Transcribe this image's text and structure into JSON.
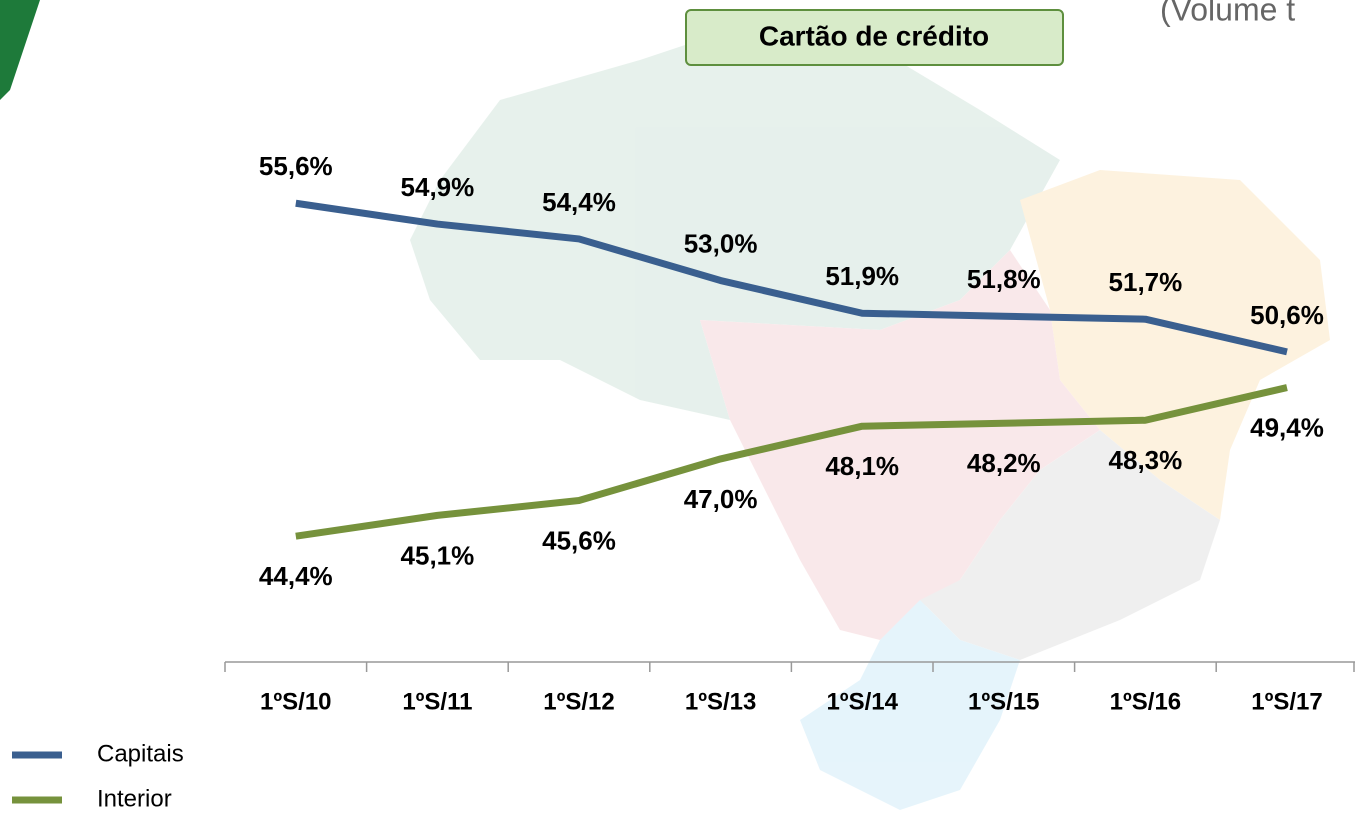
{
  "chart_data": {
    "type": "line",
    "title": "Cartão de crédito",
    "subtitle": "(Volume t",
    "categories": [
      "1ºS/10",
      "1ºS/11",
      "1ºS/12",
      "1ºS/13",
      "1ºS/14",
      "1ºS/15",
      "1ºS/16",
      "1ºS/17"
    ],
    "series": [
      {
        "name": "Capitais",
        "color": "#3a5f8f",
        "values": [
          55.6,
          54.9,
          54.4,
          53.0,
          51.9,
          51.8,
          51.7,
          50.6
        ],
        "value_labels": [
          "55,6%",
          "54,9%",
          "54,4%",
          "53,0%",
          "51,9%",
          "51,8%",
          "51,7%",
          "50,6%"
        ]
      },
      {
        "name": "Interior",
        "color": "#76923c",
        "values": [
          44.4,
          45.1,
          45.6,
          47.0,
          48.1,
          48.2,
          48.3,
          49.4
        ],
        "value_labels": [
          "44,4%",
          "45,1%",
          "45,6%",
          "47,0%",
          "48,1%",
          "48,2%",
          "48,3%",
          "49,4%"
        ]
      }
    ],
    "ylim": [
      40,
      62
    ],
    "legend": "bottom-left"
  }
}
